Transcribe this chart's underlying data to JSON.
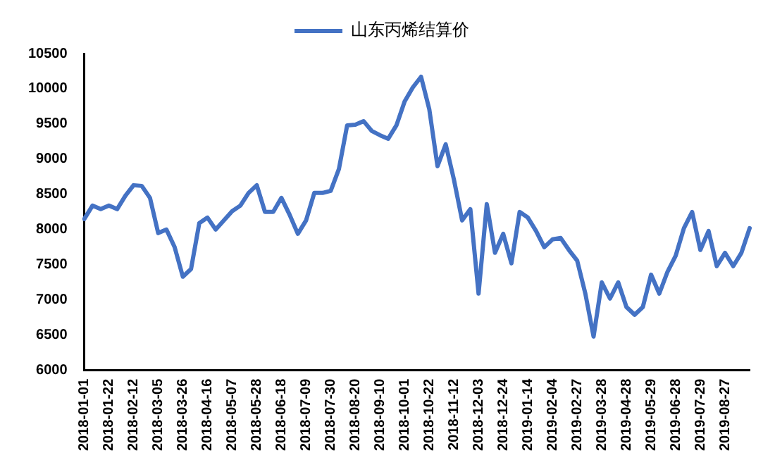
{
  "chart_data": {
    "type": "line",
    "categories": [
      "2018-01-01",
      null,
      null,
      "2018-01-22",
      null,
      null,
      "2018-02-12",
      null,
      null,
      "2018-03-05",
      null,
      null,
      "2018-03-26",
      null,
      null,
      "2018-04-16",
      null,
      null,
      "2018-05-07",
      null,
      null,
      "2018-05-28",
      null,
      null,
      "2018-06-18",
      null,
      null,
      "2018-07-09",
      null,
      null,
      "2018-07-30",
      null,
      null,
      "2018-08-20",
      null,
      null,
      "2018-09-10",
      null,
      null,
      "2018-10-01",
      null,
      null,
      "2018-10-22",
      null,
      null,
      "2018-11-12",
      null,
      null,
      "2018-12-03",
      null,
      null,
      "2018-12-24",
      null,
      null,
      "2019-01-14",
      null,
      null,
      "2019-02-04",
      null,
      null,
      "2019-02-27",
      null,
      null,
      "2019-03-28",
      null,
      null,
      "2019-04-28",
      null,
      null,
      "2019-05-29",
      null,
      null,
      "2019-06-28",
      null,
      null,
      "2019-07-29",
      null,
      null,
      "2019-08-27",
      null,
      null,
      null
    ],
    "series": [
      {
        "name": "山东丙烯结算价",
        "color": "#4472c4",
        "values": [
          8150,
          8340,
          8290,
          8340,
          8290,
          8480,
          8630,
          8620,
          8450,
          7950,
          8000,
          7750,
          7330,
          7440,
          8090,
          8170,
          8000,
          8130,
          8260,
          8340,
          8520,
          8630,
          8250,
          8250,
          8450,
          8210,
          7940,
          8130,
          8520,
          8520,
          8550,
          8860,
          9480,
          9490,
          9540,
          9400,
          9340,
          9290,
          9480,
          9820,
          10020,
          10170,
          9710,
          8900,
          9210,
          8710,
          8130,
          8290,
          7090,
          8360,
          7670,
          7940,
          7520,
          8250,
          8170,
          7980,
          7750,
          7860,
          7880,
          7710,
          7560,
          7090,
          6480,
          7250,
          7020,
          7250,
          6900,
          6790,
          6900,
          7360,
          7090,
          7400,
          7630,
          8020,
          8250,
          7710,
          7980,
          7480,
          7670,
          7480,
          7670,
          8020
        ]
      }
    ],
    "ylim": [
      6000,
      10500
    ],
    "yticks": [
      6000,
      6500,
      7000,
      7500,
      8000,
      8500,
      9000,
      9500,
      10000,
      10500
    ],
    "grid": false,
    "legend": "top",
    "marker": "none",
    "line_style": "solid"
  }
}
